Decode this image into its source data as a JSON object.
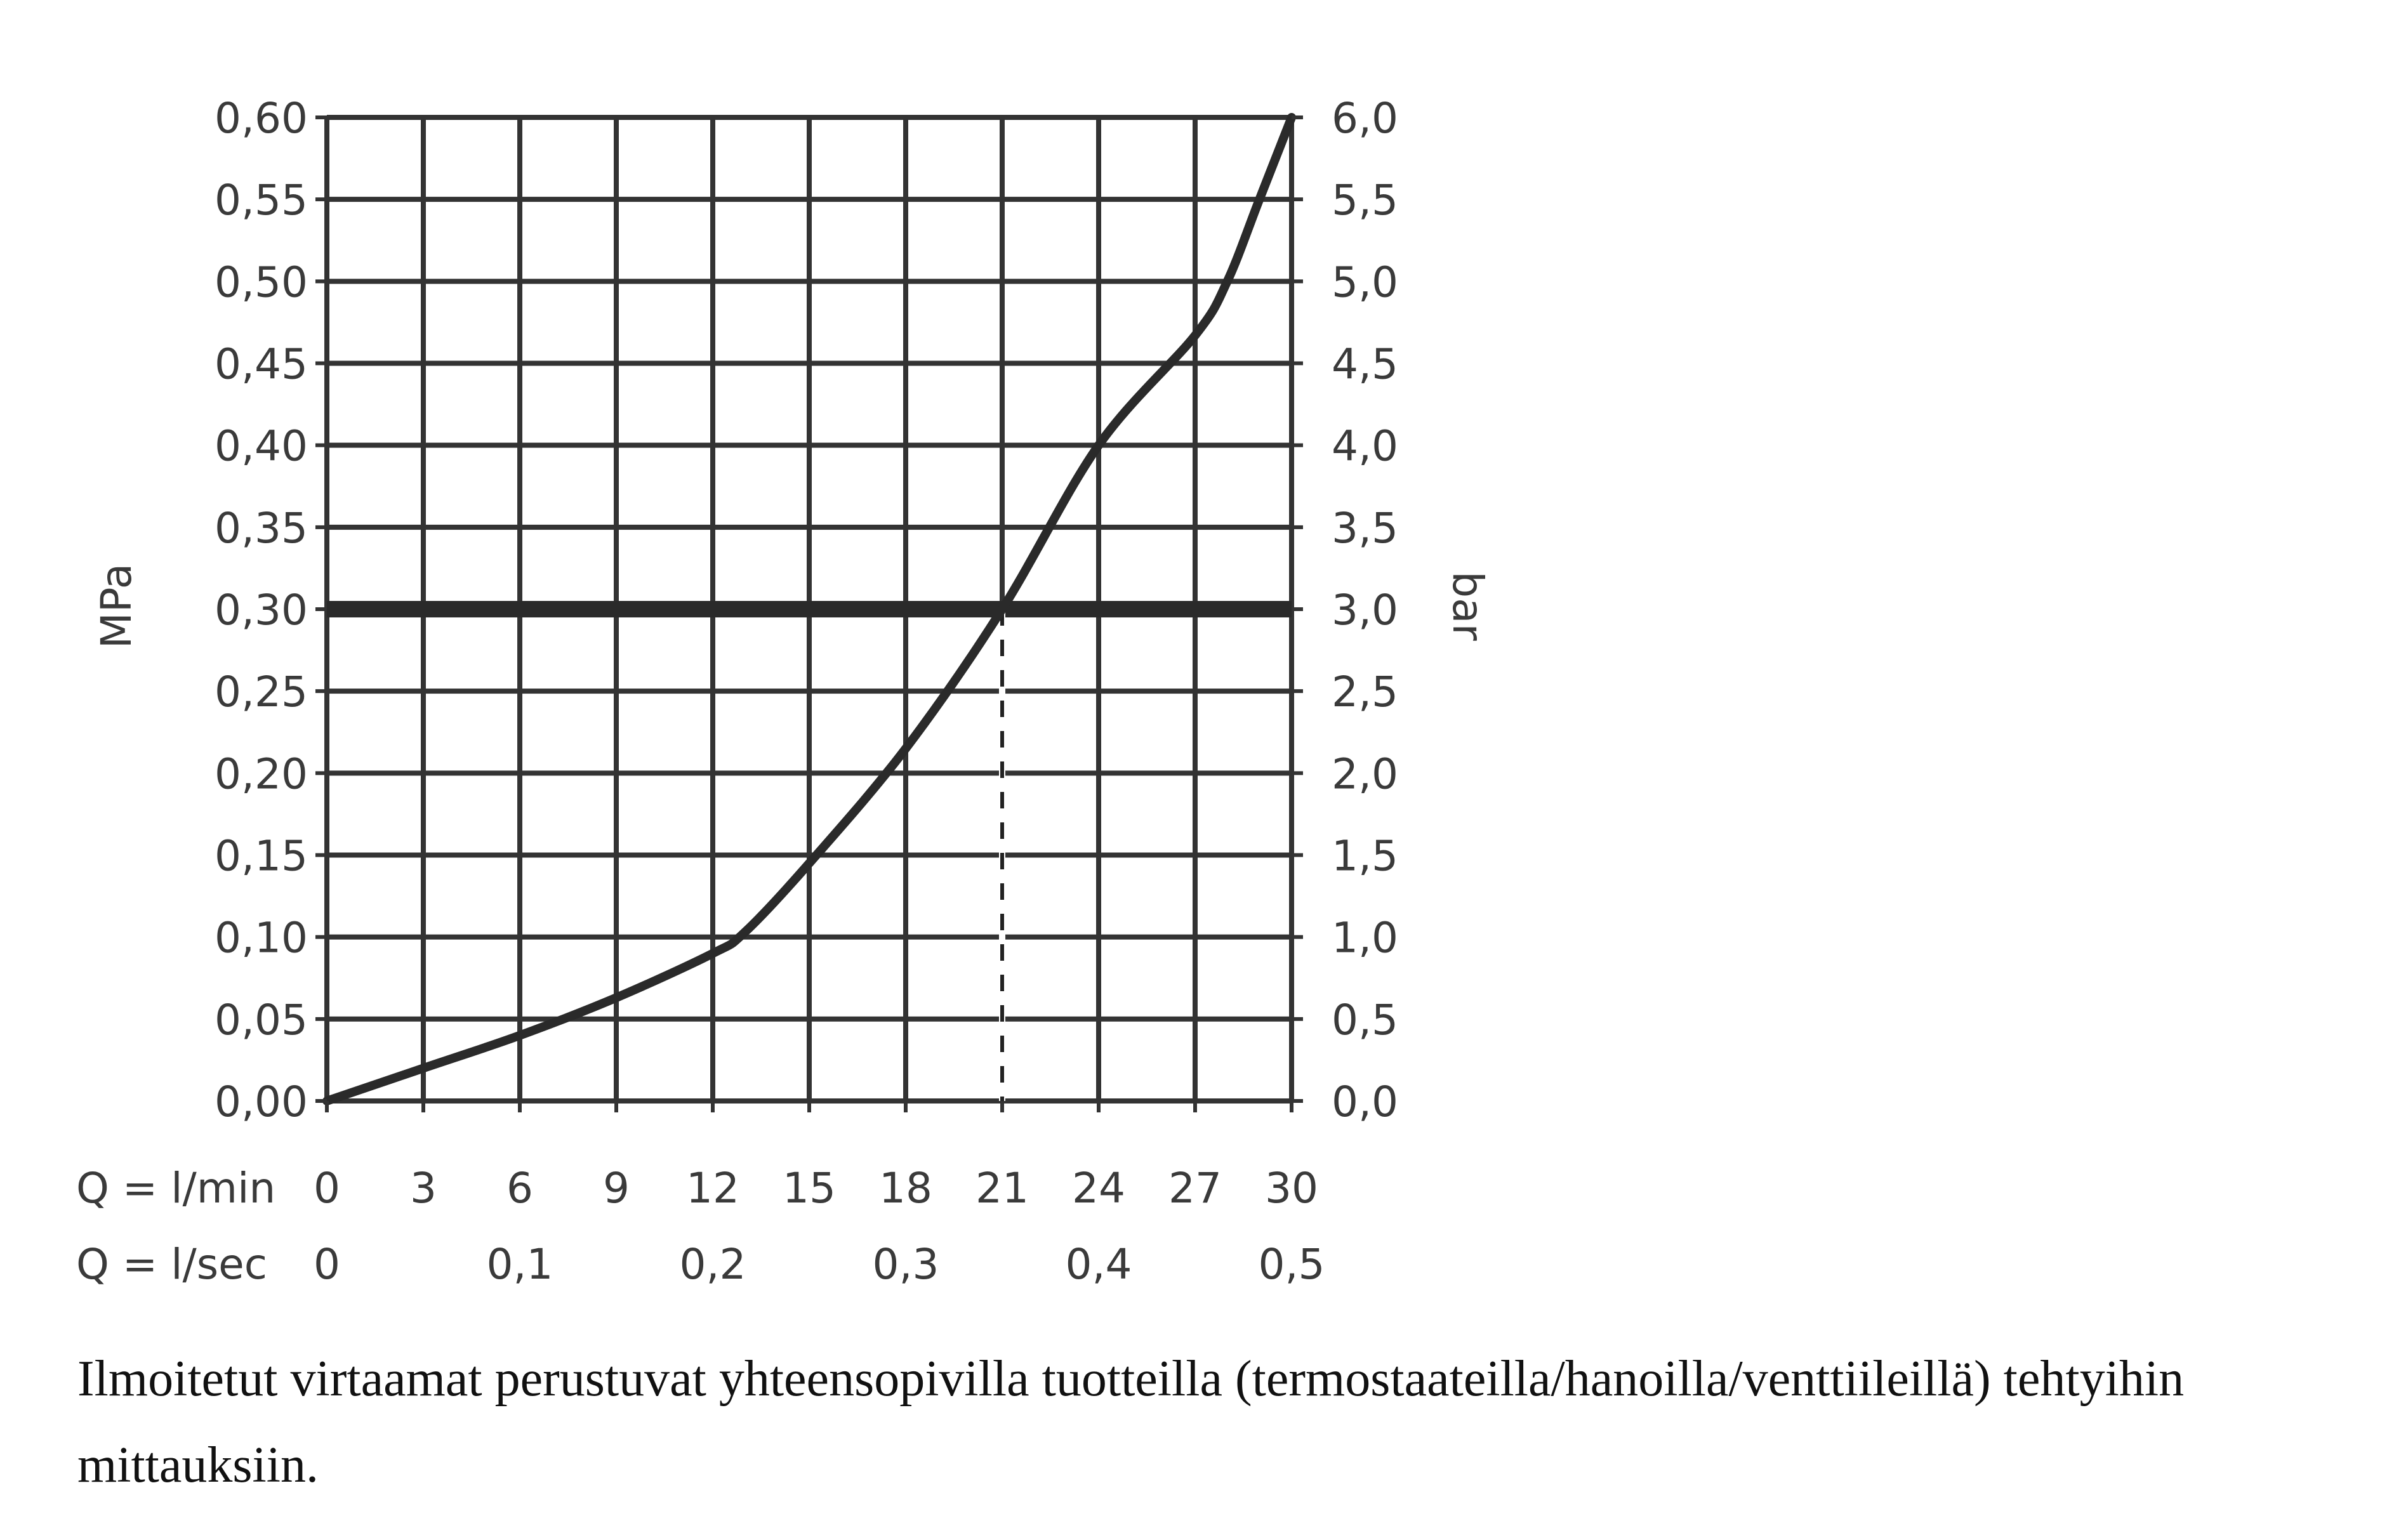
{
  "chart_data": {
    "type": "line",
    "y_left_label": "MPa",
    "y_right_label": "bar",
    "y_left_ticks": [
      "0,00",
      "0,05",
      "0,10",
      "0,15",
      "0,20",
      "0,25",
      "0,30",
      "0,35",
      "0,40",
      "0,45",
      "0,50",
      "0,55",
      "0,60"
    ],
    "y_right_ticks": [
      "0,0",
      "0,5",
      "1,0",
      "1,5",
      "2,0",
      "2,5",
      "3,0",
      "3,5",
      "4,0",
      "4,5",
      "5,0",
      "5,5",
      "6,0"
    ],
    "x_row1_label": "Q = l/min",
    "x_row1_ticks": [
      "0",
      "3",
      "6",
      "9",
      "12",
      "15",
      "18",
      "21",
      "24",
      "27",
      "30"
    ],
    "x_row2_label": "Q = l/sec",
    "x_row2_ticks": [
      {
        "value": 0,
        "label": "0"
      },
      {
        "value": 6,
        "label": "0,1"
      },
      {
        "value": 12,
        "label": "0,2"
      },
      {
        "value": 18,
        "label": "0,3"
      },
      {
        "value": 24,
        "label": "0,4"
      },
      {
        "value": 30,
        "label": "0,5"
      }
    ],
    "xlim": [
      0,
      30
    ],
    "ylim": [
      0,
      0.6
    ],
    "grid": true,
    "series": [
      {
        "x": [
          0,
          3,
          6,
          9,
          12,
          13,
          15,
          18,
          21,
          24,
          27,
          28,
          29,
          30
        ],
        "y": [
          0.0,
          0.02,
          0.04,
          0.063,
          0.09,
          0.103,
          0.145,
          0.215,
          0.3,
          0.4,
          0.467,
          0.5,
          0.55,
          0.6
        ]
      }
    ],
    "reference_line_y": 0.3,
    "marker_x": 21
  },
  "caption": "Ilmoitetut virtaamat perustuvat yhteensopivilla tuotteilla (termostaateilla/hanoilla/venttiileillä) tehtyihin mittauksiin."
}
